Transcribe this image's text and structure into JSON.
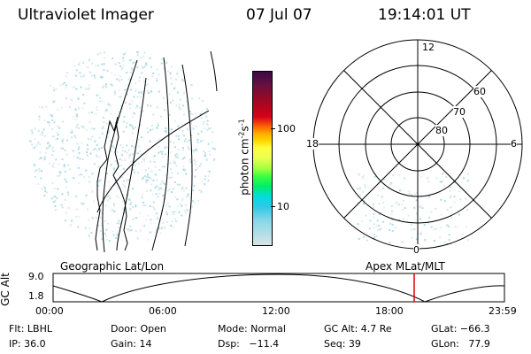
{
  "header": {
    "instrument": "Ultraviolet Imager",
    "date": "07 Jul 07",
    "time": "19:14:01 UT"
  },
  "colorbar": {
    "label": "photon cm",
    "label_sup1": "-2",
    "label_mid": "s",
    "label_sup2": "-1",
    "ticks": [
      "100",
      "10"
    ],
    "scale": "log"
  },
  "polar_plot": {
    "mlt_labels": {
      "top": "12",
      "left": "18",
      "right": "6",
      "bottom": "0"
    },
    "lat_labels": [
      "60",
      "70",
      "80"
    ]
  },
  "timeline": {
    "ylabel": "GC Alt",
    "yticks": [
      "9.0",
      "1.8"
    ],
    "left_label": "Geographic Lat/Lon",
    "right_label": "Apex MLat/MLT",
    "xticks": [
      "00:00",
      "06:00",
      "12:00",
      "18:00",
      "23:59"
    ],
    "marker_color": "#dd0000"
  },
  "info": {
    "filter": "Flt: LBHL",
    "ip": "IP: 36.0",
    "door": "Door: Open",
    "gain": "Gain: 14",
    "mode": "Mode: Normal",
    "dsp": "Dsp:   −11.4",
    "gc_alt": "GC Alt: 4.7 Re",
    "seq": "Seq: 39",
    "glat": "GLat: −66.3",
    "glon": "GLon:   77.9"
  }
}
